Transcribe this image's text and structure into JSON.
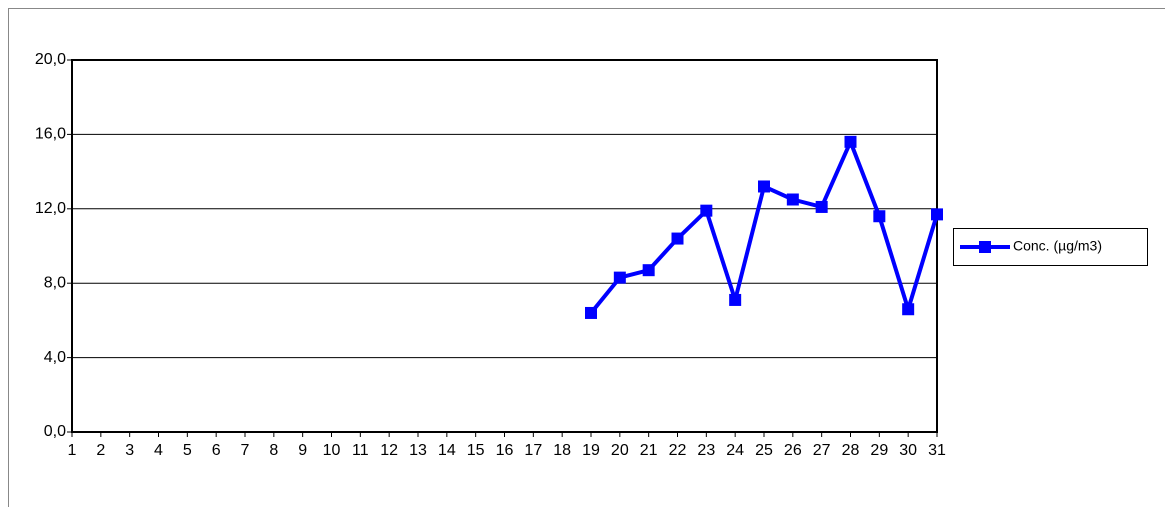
{
  "chart_data": {
    "type": "line",
    "categories": [
      "1",
      "2",
      "3",
      "4",
      "5",
      "6",
      "7",
      "8",
      "9",
      "10",
      "11",
      "12",
      "13",
      "14",
      "15",
      "16",
      "17",
      "18",
      "19",
      "20",
      "21",
      "22",
      "23",
      "24",
      "25",
      "26",
      "27",
      "28",
      "29",
      "30",
      "31"
    ],
    "series": [
      {
        "name": "Conc. (µg/m3)",
        "color": "#0000ff",
        "values": [
          null,
          null,
          null,
          null,
          null,
          null,
          null,
          null,
          null,
          null,
          null,
          null,
          null,
          null,
          null,
          null,
          null,
          null,
          6.4,
          8.3,
          8.7,
          10.4,
          11.9,
          7.1,
          13.2,
          12.5,
          12.1,
          15.6,
          11.6,
          6.6,
          11.7
        ]
      }
    ],
    "ylim": [
      0,
      20
    ],
    "yticks": [
      {
        "value": 0,
        "label": "0,0"
      },
      {
        "value": 4,
        "label": "4,0"
      },
      {
        "value": 8,
        "label": "8,0"
      },
      {
        "value": 12,
        "label": "12,0"
      },
      {
        "value": 16,
        "label": "16,0"
      },
      {
        "value": 20,
        "label": "20,0"
      }
    ],
    "grid": true,
    "legend": "right"
  }
}
